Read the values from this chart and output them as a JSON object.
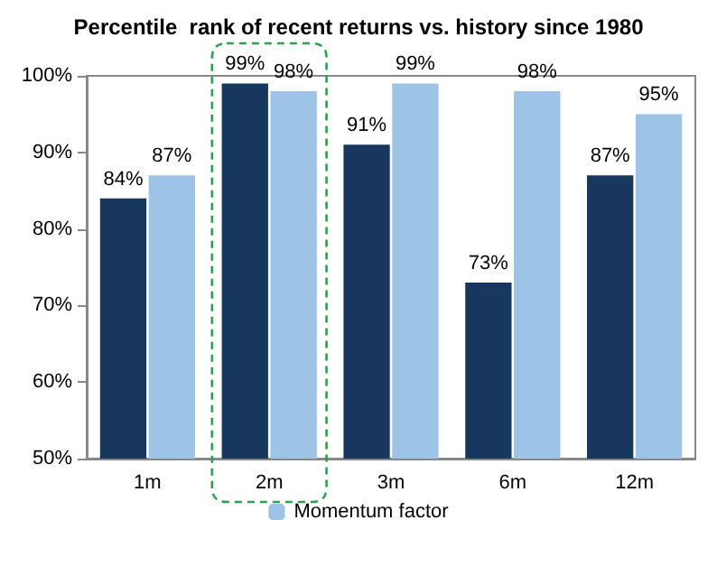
{
  "chart_data": {
    "type": "bar",
    "title": "Percentile  rank of recent returns vs. history since 1980",
    "categories": [
      "1m",
      "2m",
      "3m",
      "6m",
      "12m"
    ],
    "series": [
      {
        "color": "#17375e",
        "values": [
          84,
          99,
          91,
          73,
          87
        ]
      },
      {
        "name": "Momentum factor",
        "color": "#9dc3e6",
        "values": [
          87,
          98,
          99,
          98,
          95
        ]
      }
    ],
    "value_labels": [
      [
        "84%",
        "99%",
        "91%",
        "73%",
        "87%"
      ],
      [
        "87%",
        "98%",
        "99%",
        "98%",
        "95%"
      ]
    ],
    "ylim": [
      50,
      100
    ],
    "yticks": [
      {
        "value": 50,
        "label": "50%"
      },
      {
        "value": 60,
        "label": "60%"
      },
      {
        "value": 70,
        "label": "70%"
      },
      {
        "value": 80,
        "label": "80%"
      },
      {
        "value": 90,
        "label": "90%"
      },
      {
        "value": 100,
        "label": "100%"
      }
    ],
    "grid": false,
    "legend": "bottom"
  }
}
